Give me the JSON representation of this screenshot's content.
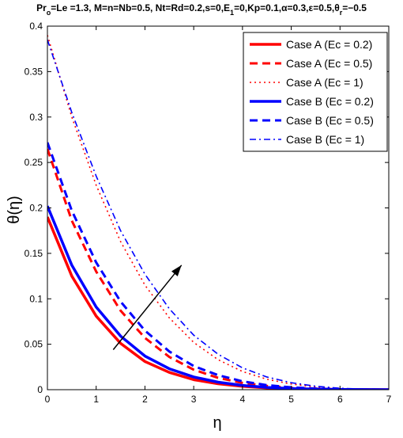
{
  "chart_data": {
    "type": "line",
    "title_parts": [
      {
        "text": "Pr",
        "sub": false
      },
      {
        "text": "o",
        "sub": true
      },
      {
        "text": "=Le =1.3, M=n=Nb=0.5, Nt=Rd=0.2,s=0,E",
        "sub": false
      },
      {
        "text": "1",
        "sub": true
      },
      {
        "text": "=0,Kp=0.1,α=0.3,ε=0.5,θ",
        "sub": false
      },
      {
        "text": "r",
        "sub": true
      },
      {
        "text": "=−0.5",
        "sub": false
      }
    ],
    "xlabel": "η",
    "ylabel": "θ(η)",
    "xlim": [
      0,
      7
    ],
    "ylim": [
      0,
      0.4
    ],
    "xticks": [
      0,
      1,
      2,
      3,
      4,
      5,
      6,
      7
    ],
    "yticks": [
      0,
      0.05,
      0.1,
      0.15,
      0.2,
      0.25,
      0.3,
      0.35,
      0.4
    ],
    "ytick_labels": [
      "0",
      "0.05",
      "0.1",
      "0.15",
      "0.2",
      "0.25",
      "0.3",
      "0.35",
      "0.4"
    ],
    "grid": false,
    "legend_position": "top-right",
    "x": [
      0,
      0.5,
      1,
      1.5,
      2,
      2.5,
      3,
      3.5,
      4,
      4.5,
      5,
      5.5,
      6,
      6.5,
      7
    ],
    "series": [
      {
        "name": "Case A (Ec = 0.2)",
        "color": "#ff0000",
        "dash": "solid",
        "values": [
          0.19,
          0.125,
          0.081,
          0.051,
          0.031,
          0.019,
          0.011,
          0.0065,
          0.0037,
          0.002,
          0.001,
          0.0005,
          0.0002,
          0.0001,
          0.0
        ]
      },
      {
        "name": "Case A (Ec = 0.5)",
        "color": "#ff0000",
        "dash": "dashed",
        "values": [
          0.265,
          0.186,
          0.13,
          0.087,
          0.057,
          0.036,
          0.022,
          0.013,
          0.0075,
          0.0041,
          0.0021,
          0.001,
          0.0004,
          0.0001,
          0.0
        ]
      },
      {
        "name": "Case A (Ec = 1)",
        "color": "#ff0000",
        "dash": "dotted",
        "values": [
          0.39,
          0.3,
          0.225,
          0.163,
          0.115,
          0.079,
          0.052,
          0.033,
          0.02,
          0.0115,
          0.0062,
          0.003,
          0.0013,
          0.0004,
          0.0
        ]
      },
      {
        "name": "Case B (Ec = 0.2)",
        "color": "#0000ff",
        "dash": "solid",
        "values": [
          0.202,
          0.137,
          0.091,
          0.059,
          0.037,
          0.023,
          0.014,
          0.0083,
          0.0047,
          0.0025,
          0.0013,
          0.0006,
          0.0002,
          0.0001,
          0.0
        ]
      },
      {
        "name": "Case B (Ec = 0.5)",
        "color": "#0000ff",
        "dash": "dashed",
        "values": [
          0.272,
          0.197,
          0.14,
          0.097,
          0.065,
          0.042,
          0.026,
          0.016,
          0.0092,
          0.005,
          0.0026,
          0.0012,
          0.0005,
          0.0001,
          0.0
        ]
      },
      {
        "name": "Case B (Ec = 1)",
        "color": "#0000ff",
        "dash": "dashdot",
        "values": [
          0.385,
          0.305,
          0.235,
          0.175,
          0.127,
          0.089,
          0.06,
          0.039,
          0.024,
          0.014,
          0.0077,
          0.0038,
          0.0016,
          0.0005,
          0.0
        ]
      }
    ],
    "annotations": [
      {
        "type": "arrow",
        "from": [
          1.35,
          0.044
        ],
        "to": [
          2.75,
          0.137
        ],
        "color": "#000000"
      }
    ]
  }
}
